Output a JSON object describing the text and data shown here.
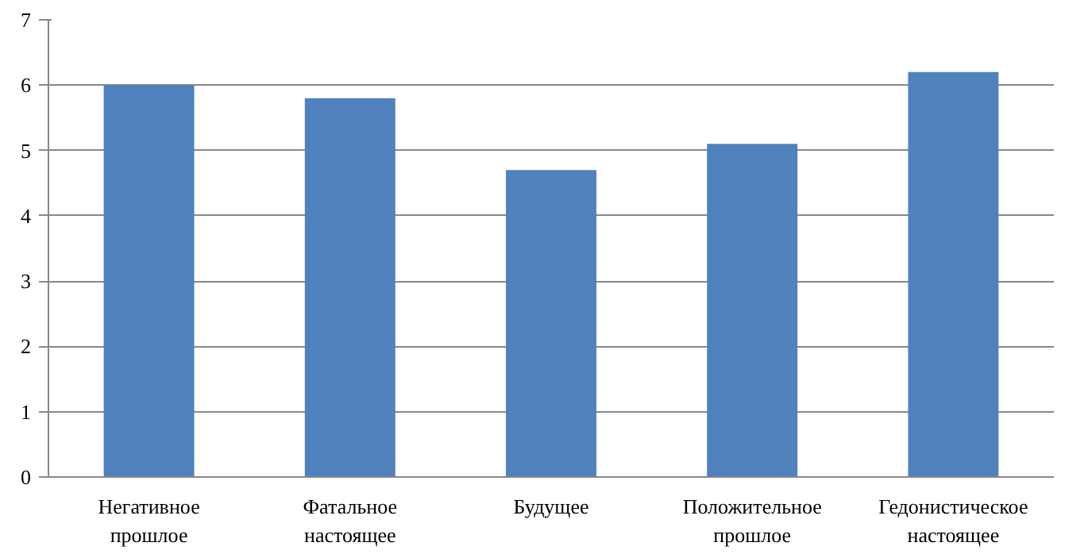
{
  "chart_data": {
    "type": "bar",
    "categories": [
      "Негативное\nпрошлое",
      "Фатальное\nнастоящее",
      "Будущее",
      "Положительное\nпрошлое",
      "Гедонистическое\nнастоящее"
    ],
    "values": [
      6.0,
      5.8,
      4.7,
      5.1,
      6.2
    ],
    "color": "#4f81bd",
    "ylim": [
      0,
      7
    ],
    "yticks": [
      0,
      1,
      2,
      3,
      4,
      5,
      6,
      7
    ],
    "grid": "y"
  }
}
